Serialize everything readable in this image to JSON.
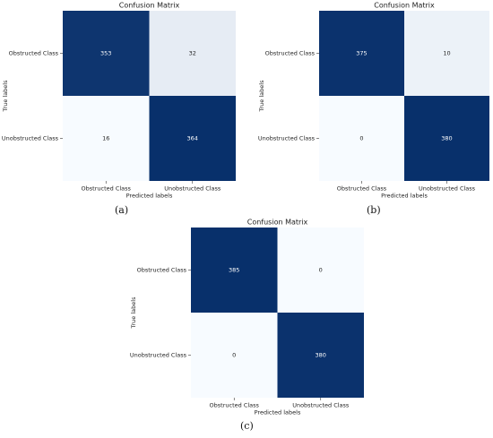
{
  "chart_data": [
    {
      "type": "heatmap",
      "title": "Confusion Matrix",
      "xlabel": "Predicted labels",
      "ylabel": "True labels",
      "x_tick_labels": [
        "Obstructed Class",
        "Unobstructed Class"
      ],
      "y_tick_labels": [
        "Obstructed Class",
        "Unobstructed Class"
      ],
      "matrix": [
        [
          353,
          32
        ],
        [
          16,
          364
        ]
      ],
      "caption": "(a)"
    },
    {
      "type": "heatmap",
      "title": "Confusion Matrix",
      "xlabel": "Predicted labels",
      "ylabel": "True labels",
      "x_tick_labels": [
        "Obstructed Class",
        "Unobstructed Class"
      ],
      "y_tick_labels": [
        "Obstructed Class",
        "Unobstructed Class"
      ],
      "matrix": [
        [
          375,
          10
        ],
        [
          0,
          380
        ]
      ],
      "caption": "(b)"
    },
    {
      "type": "heatmap",
      "title": "Confusion Matrix",
      "xlabel": "Predicted labels",
      "ylabel": "True labels",
      "x_tick_labels": [
        "Obstructed Class",
        "Unobstructed Class"
      ],
      "y_tick_labels": [
        "Obstructed Class",
        "Unobstructed Class"
      ],
      "matrix": [
        [
          385,
          0
        ],
        [
          0,
          380
        ]
      ],
      "caption": "(c)"
    }
  ],
  "colors": {
    "colormap": "Blues",
    "low": "#f7fbff",
    "high": "#08306b"
  }
}
